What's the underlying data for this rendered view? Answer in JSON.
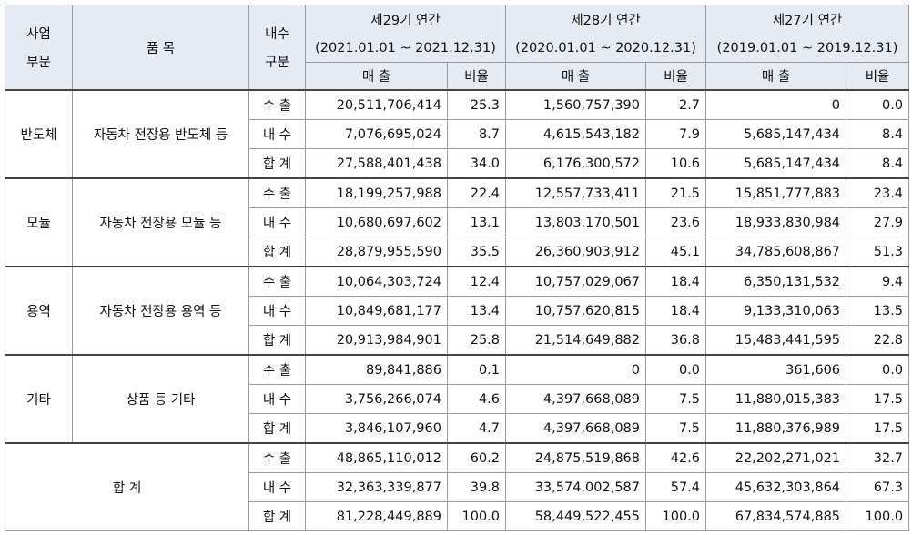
{
  "headers": {
    "business": [
      "사업",
      "부문"
    ],
    "product": "품 목",
    "domestic_split": [
      "내수",
      "구분"
    ],
    "periods": [
      {
        "name": "제29기 연간",
        "range": "(2021.01.01 ~ 2021.12.31)"
      },
      {
        "name": "제28기 연간",
        "range": "(2020.01.01 ~ 2020.12.31)"
      },
      {
        "name": "제27기 연간",
        "range": "(2019.01.01 ~ 2019.12.31)"
      }
    ],
    "sales": "매 출",
    "ratio": "비율"
  },
  "groups": [
    {
      "business": "반도체",
      "product": "자동차 전장용 반도체 등",
      "rows": [
        {
          "type": "수 출",
          "v": [
            "20,511,706,414",
            "25.3",
            "1,560,757,390",
            "2.7",
            "0",
            "0.0"
          ]
        },
        {
          "type": "내 수",
          "v": [
            "7,076,695,024",
            "8.7",
            "4,615,543,182",
            "7.9",
            "5,685,147,434",
            "8.4"
          ]
        },
        {
          "type": "합 계",
          "v": [
            "27,588,401,438",
            "34.0",
            "6,176,300,572",
            "10.6",
            "5,685,147,434",
            "8.4"
          ]
        }
      ]
    },
    {
      "business": "모듈",
      "product": "자동차 전장용 모듈 등",
      "rows": [
        {
          "type": "수 출",
          "v": [
            "18,199,257,988",
            "22.4",
            "12,557,733,411",
            "21.5",
            "15,851,777,883",
            "23.4"
          ]
        },
        {
          "type": "내 수",
          "v": [
            "10,680,697,602",
            "13.1",
            "13,803,170,501",
            "23.6",
            "18,933,830,984",
            "27.9"
          ]
        },
        {
          "type": "합 계",
          "v": [
            "28,879,955,590",
            "35.5",
            "26,360,903,912",
            "45.1",
            "34,785,608,867",
            "51.3"
          ]
        }
      ]
    },
    {
      "business": "용역",
      "product": "자동차 전장용 용역 등",
      "rows": [
        {
          "type": "수 출",
          "v": [
            "10,064,303,724",
            "12.4",
            "10,757,029,067",
            "18.4",
            "6,350,131,532",
            "9.4"
          ]
        },
        {
          "type": "내 수",
          "v": [
            "10,849,681,177",
            "13.4",
            "10,757,620,815",
            "18.4",
            "9,133,310,063",
            "13.5"
          ]
        },
        {
          "type": "합 계",
          "v": [
            "20,913,984,901",
            "25.8",
            "21,514,649,882",
            "36.8",
            "15,483,441,595",
            "22.8"
          ]
        }
      ]
    },
    {
      "business": "기타",
      "product": "상품 등 기타",
      "rows": [
        {
          "type": "수 출",
          "v": [
            "89,841,886",
            "0.1",
            "0",
            "0.0",
            "361,606",
            "0.0"
          ]
        },
        {
          "type": "내 수",
          "v": [
            "3,756,266,074",
            "4.6",
            "4,397,668,089",
            "7.5",
            "11,880,015,383",
            "17.5"
          ]
        },
        {
          "type": "합 계",
          "v": [
            "3,846,107,960",
            "4.7",
            "4,397,668,089",
            "7.5",
            "11,880,376,989",
            "17.5"
          ]
        }
      ]
    }
  ],
  "total": {
    "label": "합 계",
    "rows": [
      {
        "type": "수 출",
        "v": [
          "48,865,110,012",
          "60.2",
          "24,875,519,868",
          "42.6",
          "22,202,271,021",
          "32.7"
        ]
      },
      {
        "type": "내 수",
        "v": [
          "32,363,339,877",
          "39.8",
          "33,574,002,587",
          "57.4",
          "45,632,303,864",
          "67.3"
        ]
      },
      {
        "type": "합 계",
        "v": [
          "81,228,449,889",
          "100.0",
          "58,449,522,455",
          "100.0",
          "67,834,574,885",
          "100.0"
        ]
      }
    ]
  }
}
